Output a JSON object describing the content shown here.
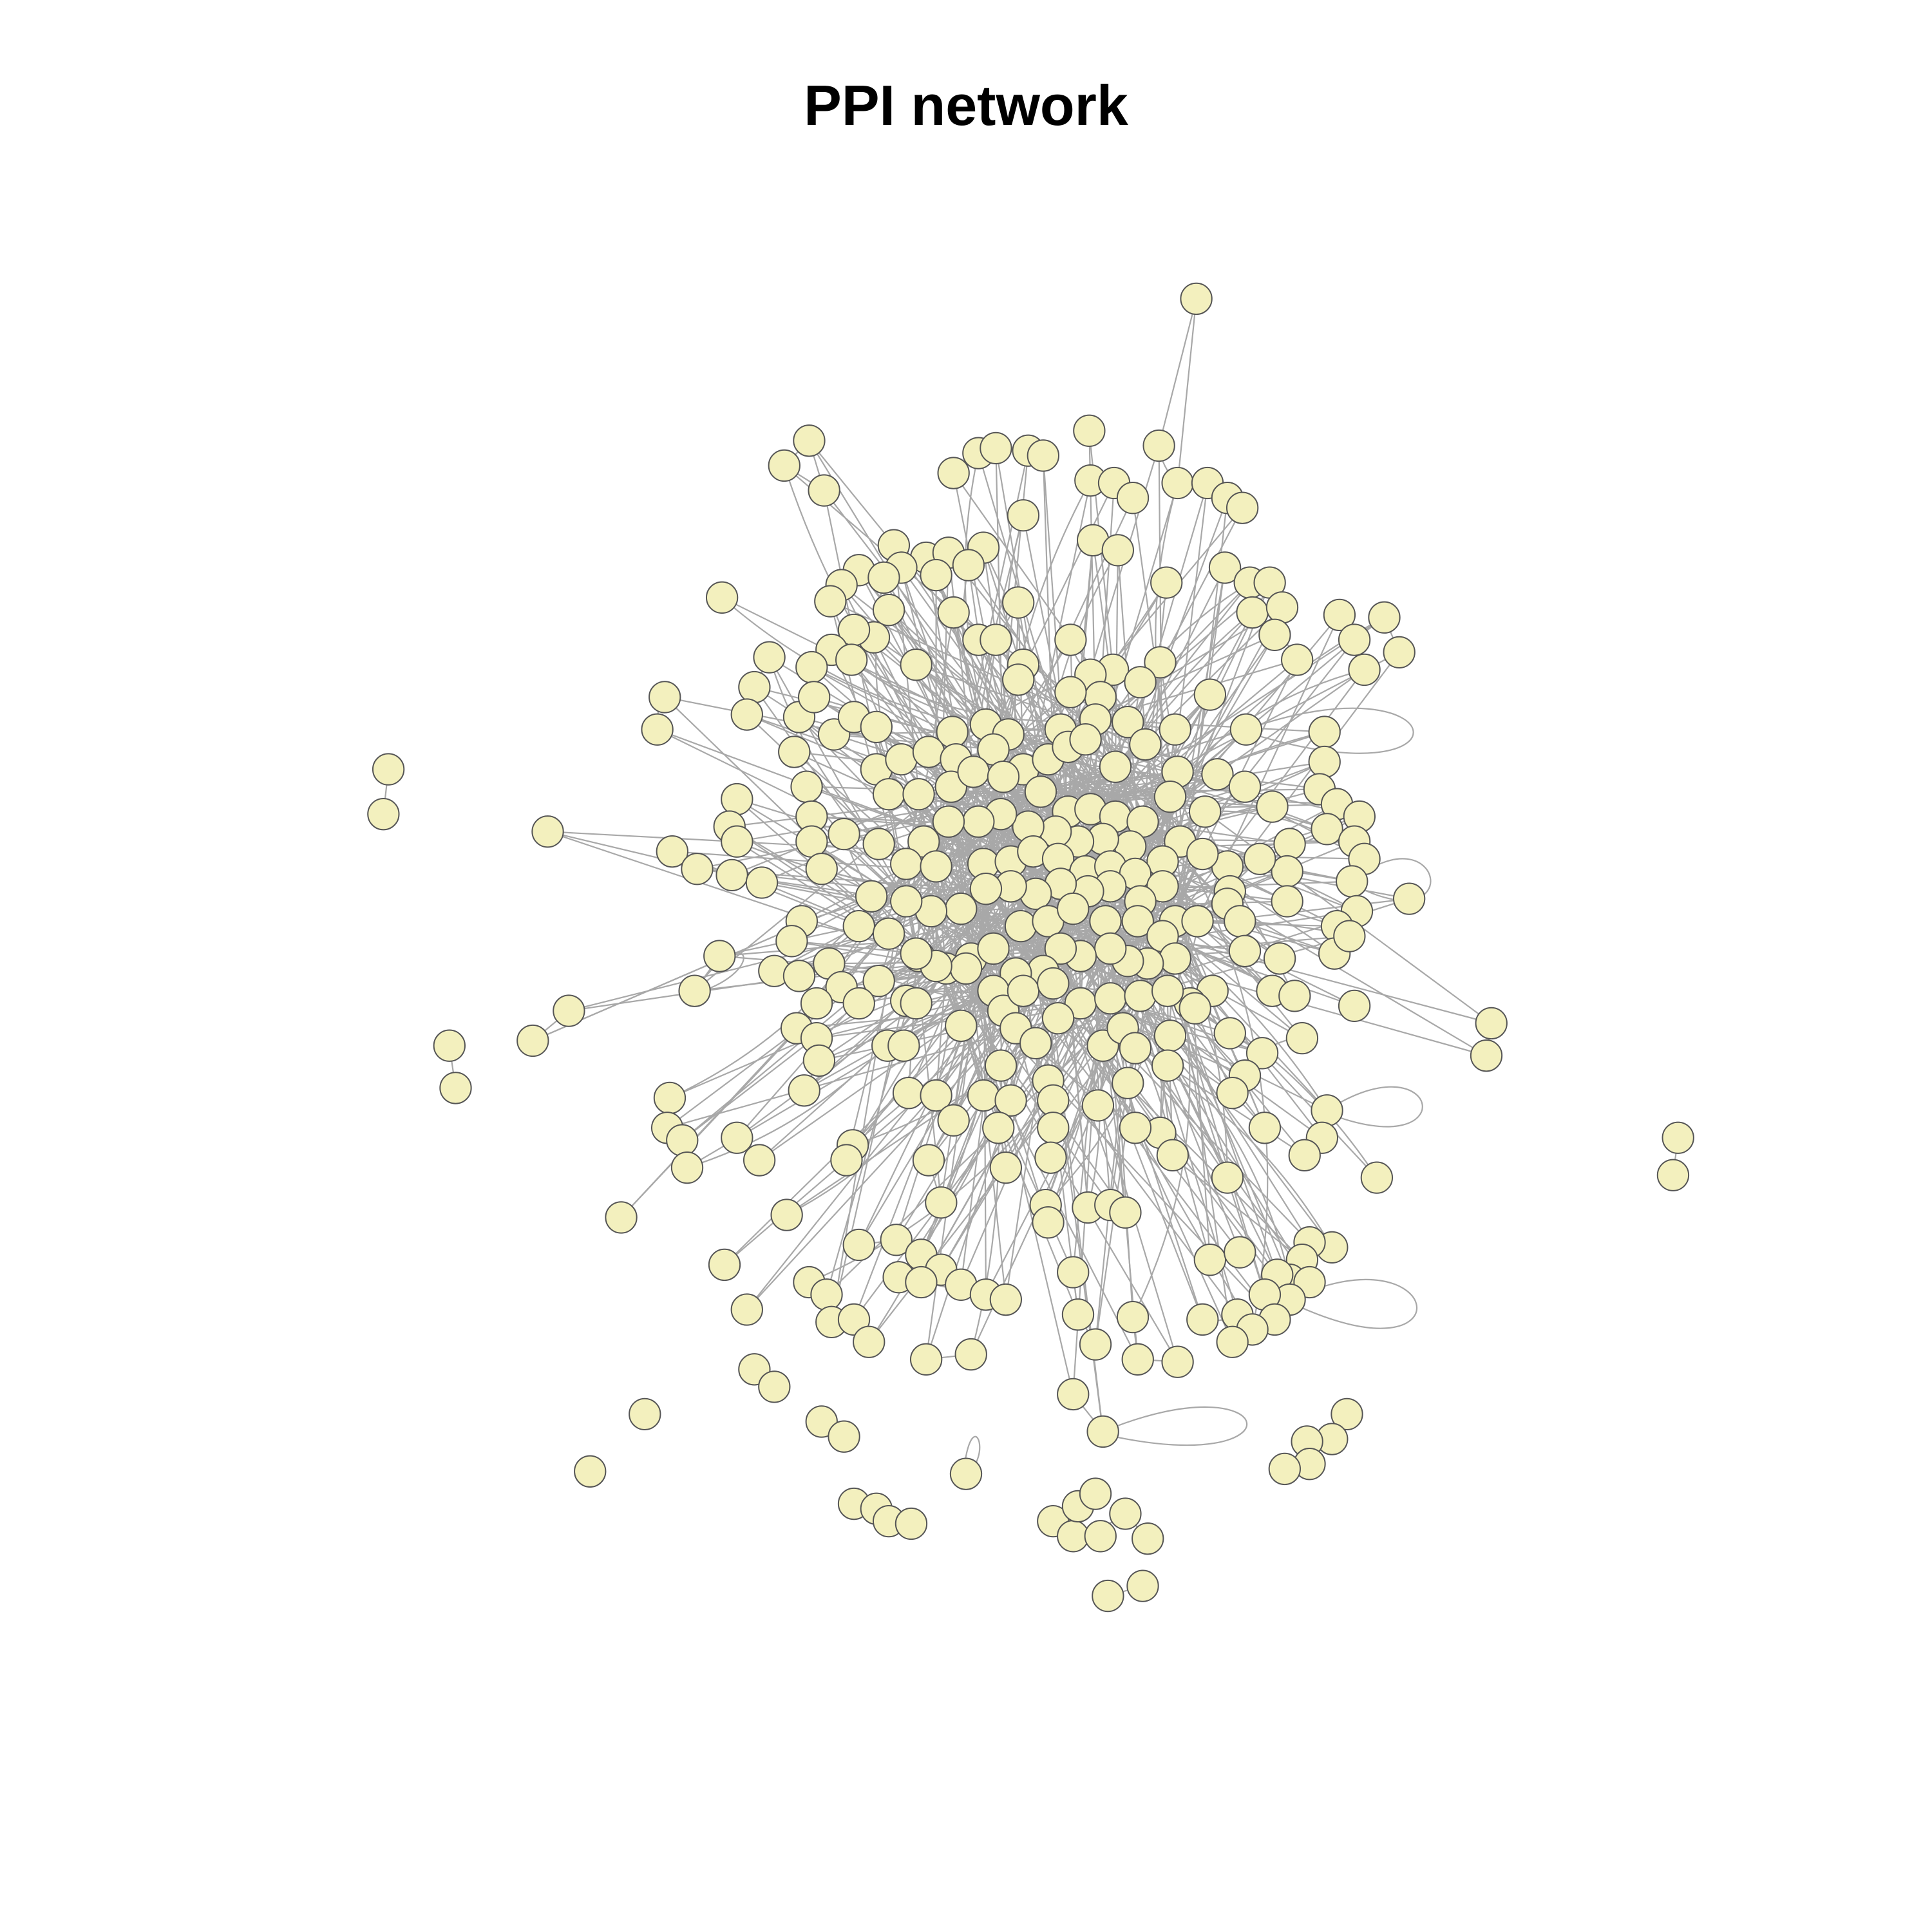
{
  "title": "PPI network",
  "colors": {
    "node_fill": "#F3F0BE",
    "node_stroke": "#555555",
    "edge": "#A8A8A8",
    "background": "#FFFFFF"
  }
}
